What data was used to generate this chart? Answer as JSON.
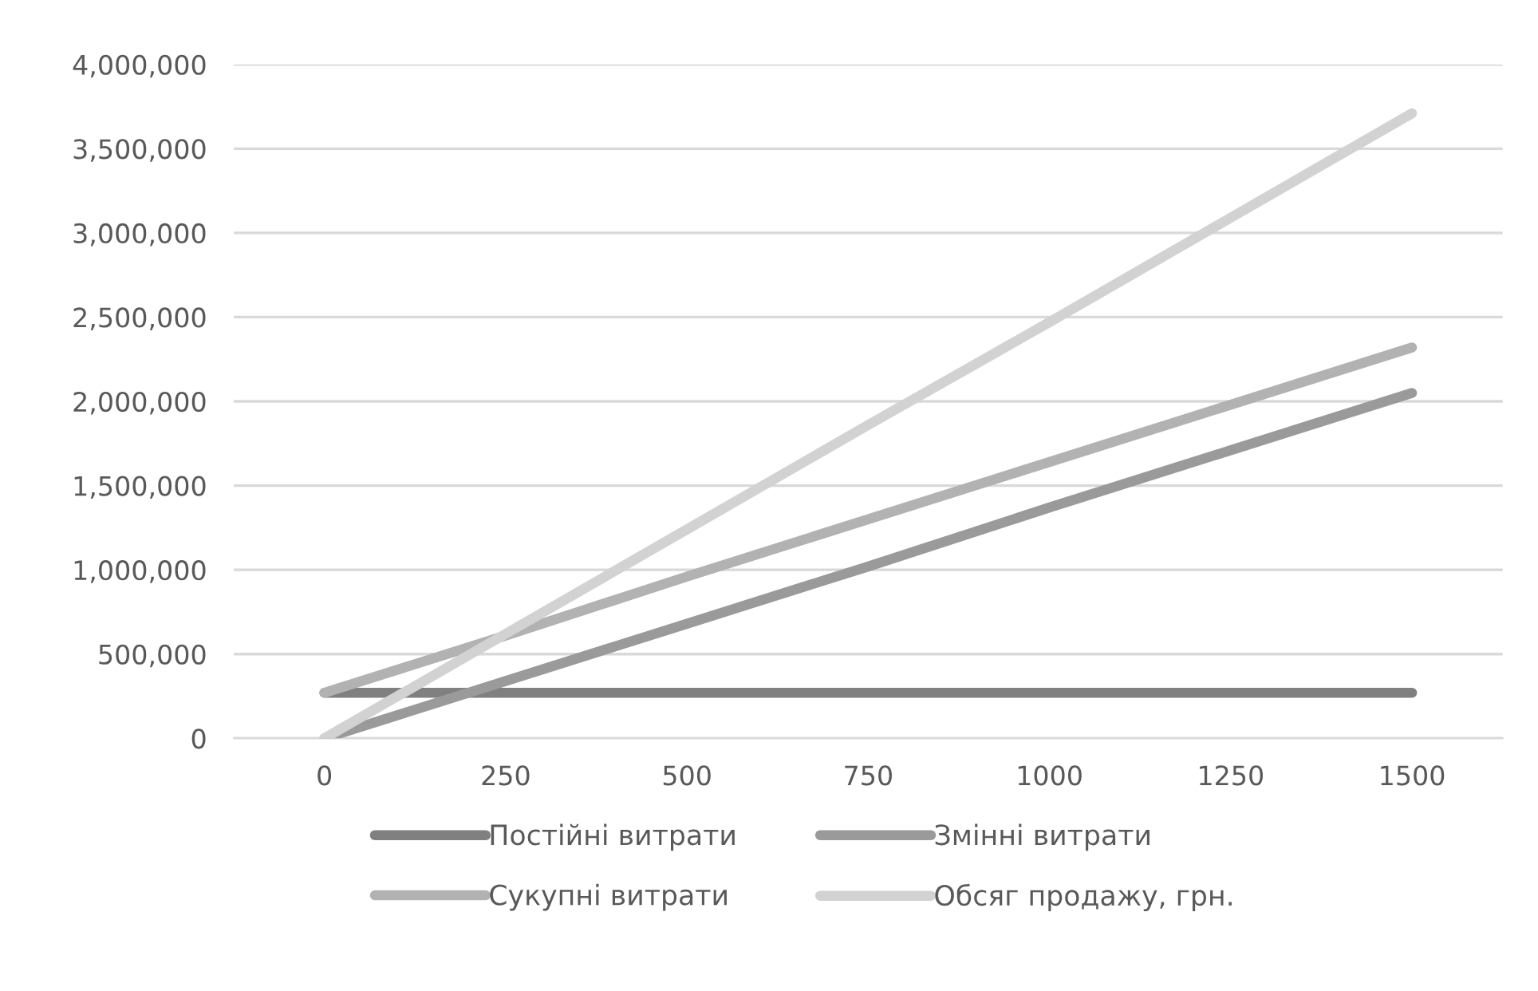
{
  "chart_data": {
    "type": "line",
    "categories": [
      "0",
      "250",
      "500",
      "750",
      "1000",
      "1250",
      "1500"
    ],
    "series": [
      {
        "name": "Постійні витрати",
        "color": "#808080",
        "values": [
          270000,
          270000,
          270000,
          270000,
          270000,
          270000,
          270000
        ]
      },
      {
        "name": "Змінні витрати",
        "color": "#9a9a9a",
        "values": [
          0,
          340000,
          680000,
          1020000,
          1370000,
          1710000,
          2050000
        ]
      },
      {
        "name": "Сукупні витрати",
        "color": "#b2b2b2",
        "values": [
          270000,
          610000,
          960000,
          1300000,
          1640000,
          1980000,
          2320000
        ]
      },
      {
        "name": "Обсяг продажу, грн.",
        "color": "#d2d2d2",
        "values": [
          0,
          620000,
          1240000,
          1860000,
          2470000,
          3090000,
          3710000
        ]
      }
    ],
    "ylim": [
      0,
      4000000
    ],
    "yticks": [
      {
        "value": 0,
        "label": "0"
      },
      {
        "value": 500000,
        "label": "500,000"
      },
      {
        "value": 1000000,
        "label": "1,000,000"
      },
      {
        "value": 1500000,
        "label": "1,500,000"
      },
      {
        "value": 2000000,
        "label": "2,000,000"
      },
      {
        "value": 2500000,
        "label": "2,500,000"
      },
      {
        "value": 3000000,
        "label": "3,000,000"
      },
      {
        "value": 3500000,
        "label": "3,500,000"
      },
      {
        "value": 4000000,
        "label": "4,000,000"
      }
    ],
    "grid": "y",
    "legend": "bottom",
    "marker": "none",
    "line_style": "solid"
  }
}
